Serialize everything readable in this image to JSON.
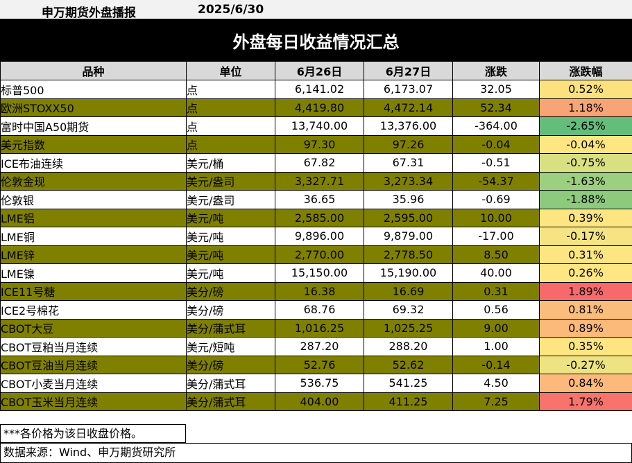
{
  "header": {
    "brand": "申万期货外盘播报",
    "date": "2025/6/30"
  },
  "banner": {
    "title": "外盘每日收益情况汇总"
  },
  "table": {
    "columns": [
      "品种",
      "单位",
      "6月26日",
      "6月27日",
      "涨跌",
      "涨跌幅"
    ],
    "rows": [
      {
        "name": "标普500",
        "unit": "点",
        "d1": "6,141.02",
        "d2": "6,173.07",
        "chg": "32.05",
        "pct": "0.52%",
        "pct_color": "#fce27f",
        "olive": false
      },
      {
        "name": "欧洲STOXX50",
        "unit": "点",
        "d1": "4,419.80",
        "d2": "4,472.14",
        "chg": "52.34",
        "pct": "1.18%",
        "pct_color": "#f9a476",
        "olive": true
      },
      {
        "name": "富时中国A50期货",
        "unit": "点",
        "d1": "13,740.00",
        "d2": "13,376.00",
        "chg": "-364.00",
        "pct": "-2.65%",
        "pct_color": "#63be7b",
        "olive": false
      },
      {
        "name": "美元指数",
        "unit": "点",
        "d1": "97.30",
        "d2": "97.26",
        "chg": "-0.04",
        "pct": "-0.04%",
        "pct_color": "#fee783",
        "olive": true
      },
      {
        "name": "ICE布油连续",
        "unit": "美元/桶",
        "d1": "67.82",
        "d2": "67.31",
        "chg": "-0.51",
        "pct": "-0.75%",
        "pct_color": "#d9e082",
        "olive": false
      },
      {
        "name": "伦敦金现",
        "unit": "美元/盎司",
        "d1": "3,327.71",
        "d2": "3,273.34",
        "chg": "-54.37",
        "pct": "-1.63%",
        "pct_color": "#9ccf7f",
        "olive": true
      },
      {
        "name": "伦敦银",
        "unit": "美元/盎司",
        "d1": "36.65",
        "d2": "35.96",
        "chg": "-0.69",
        "pct": "-1.88%",
        "pct_color": "#8dca7d",
        "olive": false
      },
      {
        "name": "LME铝",
        "unit": "美元/吨",
        "d1": "2,585.00",
        "d2": "2,595.00",
        "chg": "10.00",
        "pct": "0.39%",
        "pct_color": "#fde581",
        "olive": true
      },
      {
        "name": "LME铜",
        "unit": "美元/吨",
        "d1": "9,896.00",
        "d2": "9,879.00",
        "chg": "-17.00",
        "pct": "-0.17%",
        "pct_color": "#f4e582",
        "olive": false
      },
      {
        "name": "LME锌",
        "unit": "美元/吨",
        "d1": "2,770.00",
        "d2": "2,778.50",
        "chg": "8.50",
        "pct": "0.31%",
        "pct_color": "#fde682",
        "olive": true
      },
      {
        "name": "LME镍",
        "unit": "美元/吨",
        "d1": "15,150.00",
        "d2": "15,190.00",
        "chg": "40.00",
        "pct": "0.26%",
        "pct_color": "#fee782",
        "olive": false
      },
      {
        "name": "ICE11号糖",
        "unit": "美分/磅",
        "d1": "16.38",
        "d2": "16.69",
        "chg": "0.31",
        "pct": "1.89%",
        "pct_color": "#f8696b",
        "olive": true
      },
      {
        "name": "ICE2号棉花",
        "unit": "美分/磅",
        "d1": "68.76",
        "d2": "69.32",
        "chg": "0.56",
        "pct": "0.81%",
        "pct_color": "#fbbd7b",
        "olive": false
      },
      {
        "name": "CBOT大豆",
        "unit": "美分/蒲式耳",
        "d1": "1,016.25",
        "d2": "1,025.25",
        "chg": "9.00",
        "pct": "0.89%",
        "pct_color": "#fbb97a",
        "olive": true
      },
      {
        "name": "CBOT豆粕当月连续",
        "unit": "美元/短吨",
        "d1": "287.20",
        "d2": "288.20",
        "chg": "1.00",
        "pct": "0.35%",
        "pct_color": "#fde581",
        "olive": false
      },
      {
        "name": "CBOT豆油当月连续",
        "unit": "美分/磅",
        "d1": "52.76",
        "d2": "52.62",
        "chg": "-0.14",
        "pct": "-0.27%",
        "pct_color": "#eee382",
        "olive": true
      },
      {
        "name": "CBOT小麦当月连续",
        "unit": "美分/蒲式耳",
        "d1": "536.75",
        "d2": "541.25",
        "chg": "4.50",
        "pct": "0.84%",
        "pct_color": "#fbba7b",
        "olive": false
      },
      {
        "name": "CBOT玉米当月连续",
        "unit": "美分/蒲式耳",
        "d1": "404.00",
        "d2": "411.25",
        "chg": "7.25",
        "pct": "1.79%",
        "pct_color": "#f8736c",
        "olive": true
      }
    ]
  },
  "footer": {
    "note": "***各价格为该日收盘价格。",
    "source": "数据来源：Wind、申万期货研究所"
  }
}
